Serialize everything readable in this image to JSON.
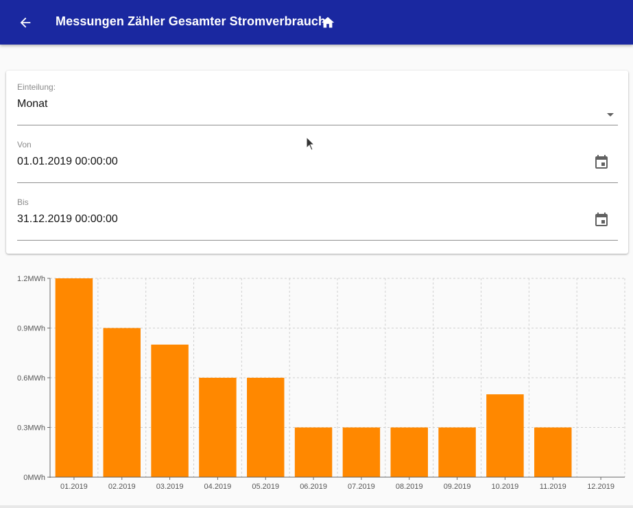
{
  "appbar": {
    "title": "Messungen Zähler Gesamter Stromverbrauch",
    "back_icon": "arrow-back-icon",
    "home_icon": "home-icon",
    "color": "#1a28a0"
  },
  "form": {
    "einteilung": {
      "label": "Einteilung:",
      "value": "Monat",
      "icon": "dropdown-arrow-icon"
    },
    "von": {
      "label": "Von",
      "value": "01.01.2019 00:00:00",
      "icon": "calendar-icon"
    },
    "bis": {
      "label": "Bis",
      "value": "31.12.2019 00:00:00",
      "icon": "calendar-icon"
    }
  },
  "chart_data": {
    "type": "bar",
    "categories": [
      "01.2019",
      "02.2019",
      "03.2019",
      "04.2019",
      "05.2019",
      "06.2019",
      "07.2019",
      "08.2019",
      "09.2019",
      "10.2019",
      "11.2019",
      "12.2019"
    ],
    "values": [
      1.2,
      0.9,
      0.8,
      0.6,
      0.6,
      0.3,
      0.3,
      0.3,
      0.3,
      0.5,
      0.3,
      0
    ],
    "y_ticks": [
      "0MWh",
      "0.3MWh",
      "0.6MWh",
      "0.9MWh",
      "1.2MWh"
    ],
    "y_tick_values": [
      0,
      0.3,
      0.6,
      0.9,
      1.2
    ],
    "ylim": [
      0,
      1.2
    ],
    "grid": true,
    "bar_color": "#ff8800",
    "title": "",
    "xlabel": "",
    "ylabel": ""
  }
}
